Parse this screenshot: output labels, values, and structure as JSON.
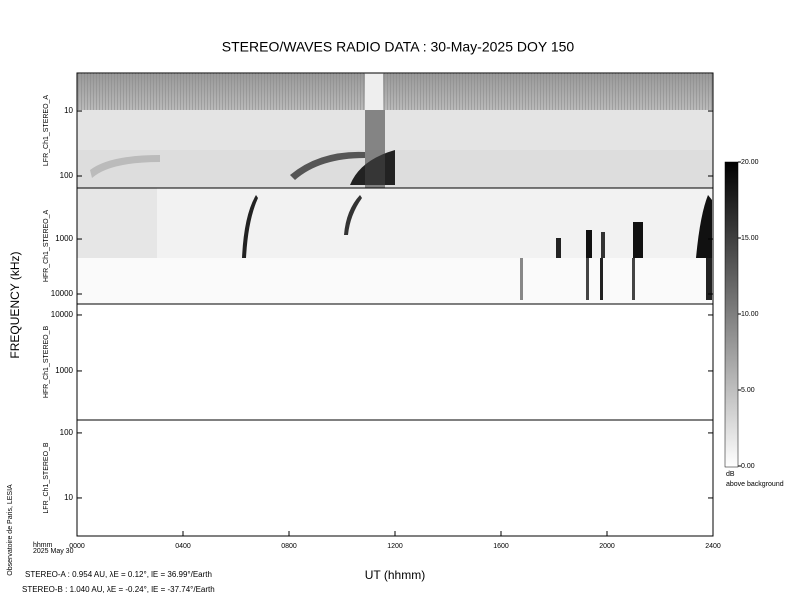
{
  "chart_data": [
    {
      "type": "spectrogram",
      "title": "STEREO/WAVES  RADIO  DATA : 30-May-2025  DOY 150",
      "ylabel": "LFR_Ch1_STEREO_A",
      "log": true,
      "ylim": [
        2.6,
        153
      ],
      "yticks": [
        10,
        100
      ]
    },
    {
      "type": "spectrogram",
      "ylabel": "HFR_Ch1_STEREO_A",
      "log": true,
      "ylim": [
        118,
        15200
      ],
      "yticks": [
        1000,
        10000
      ]
    },
    {
      "type": "spectrogram",
      "ylabel": "HFR_Ch1_STEREO_B",
      "log": true,
      "ylim": [
        15700,
        133
      ],
      "yticks": [
        10000,
        1000
      ]
    },
    {
      "type": "spectrogram",
      "ylabel": "LFR_Ch1_STEREO_B",
      "log": true,
      "ylim": [
        158,
        2.6
      ],
      "yticks": [
        100,
        10
      ],
      "xlabel": "UT (hhmm)",
      "xlim": [
        0,
        24
      ],
      "xticks": [
        {
          "value": 0,
          "label": "0000"
        },
        {
          "value": 4,
          "label": "0400"
        },
        {
          "value": 8,
          "label": "0800"
        },
        {
          "value": 12,
          "label": "1200"
        },
        {
          "value": 16,
          "label": "1600"
        },
        {
          "value": 20,
          "label": "2000"
        },
        {
          "value": 24,
          "label": "2400"
        }
      ]
    },
    {
      "type": "colorbar",
      "label": "dB",
      "sublabel": "above background",
      "ylim": [
        0,
        20
      ],
      "yticks": [
        {
          "value": 0,
          "label": "0.00"
        },
        {
          "value": 5,
          "label": "5.00"
        },
        {
          "value": 10,
          "label": "10.00"
        },
        {
          "value": 15,
          "label": "15.00"
        },
        {
          "value": 20,
          "label": "20.00"
        }
      ]
    }
  ],
  "footer": {
    "frequency_label": "FREQUENCY (kHz)",
    "credit": "Observatoire de Paris, LESIA",
    "time_unit": "hhmm",
    "date": "2025 May 30",
    "stereo_a": "STEREO-A : 0.954 AU, λE = 0.12°, lE = 36.99°/Earth",
    "stereo_b": "STEREO-B : 1.040 AU, λE = -0.24°, lE = -37.74°/Earth"
  }
}
